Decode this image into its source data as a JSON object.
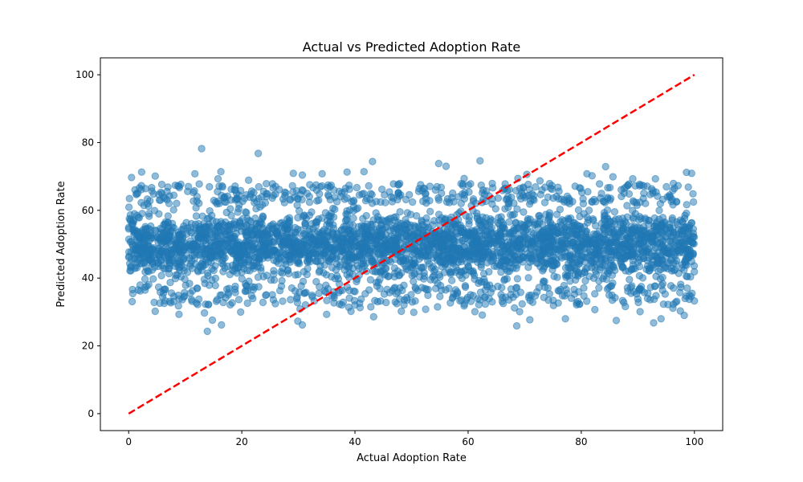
{
  "chart_data": {
    "type": "scatter",
    "title": "Actual vs Predicted Adoption Rate",
    "xlabel": "Actual Adoption Rate",
    "ylabel": "Predicted Adoption Rate",
    "xlim": [
      -5,
      105
    ],
    "ylim": [
      -5,
      105
    ],
    "xticks": [
      0,
      20,
      40,
      60,
      80,
      100
    ],
    "yticks": [
      0,
      20,
      40,
      60,
      80,
      100
    ],
    "grid": false,
    "point_color": "#1f77b4",
    "point_alpha": 0.5,
    "reference_line": {
      "x": [
        0,
        100
      ],
      "y": [
        0,
        100
      ],
      "color": "#ff0000",
      "style": "dashed"
    },
    "series": [
      {
        "description": "dense cloud: x uniformly spread over 0–100, y centered ~50",
        "x_range": [
          0,
          100
        ],
        "y_center": 50,
        "y_core_range": [
          37,
          63
        ],
        "outliers": [
          [
            12.9,
            78.2
          ],
          [
            22.9,
            76.8
          ],
          [
            62.1,
            74.6
          ],
          [
            43.1,
            74.4
          ],
          [
            54.8,
            73.8
          ],
          [
            56.1,
            73.0
          ],
          [
            84.3,
            72.9
          ],
          [
            16.3,
            71.4
          ],
          [
            2.3,
            71.3
          ],
          [
            38.6,
            71.3
          ],
          [
            41.6,
            71.4
          ],
          [
            98.6,
            71.2
          ],
          [
            99.5,
            70.9
          ],
          [
            11.7,
            70.8
          ],
          [
            29.1,
            70.9
          ],
          [
            30.7,
            70.4
          ],
          [
            34.2,
            70.8
          ],
          [
            70.4,
            70.6
          ],
          [
            81.9,
            70.2
          ],
          [
            4.7,
            70.1
          ],
          [
            0.5,
            69.7
          ],
          [
            15.8,
            69.3
          ],
          [
            21.2,
            68.9
          ],
          [
            68.8,
            69.4
          ],
          [
            89.1,
            69.3
          ],
          [
            93.1,
            69.3
          ],
          [
            59.3,
            69.4
          ],
          [
            85.6,
            69.9
          ],
          [
            81.0,
            70.8
          ],
          [
            72.7,
            68.7
          ],
          [
            21.0,
            32.6
          ],
          [
            30.3,
            30.9
          ],
          [
            12.2,
            32.2
          ],
          [
            18.3,
            32.7
          ],
          [
            5.5,
            32.6
          ],
          [
            8.8,
            31.8
          ],
          [
            13.4,
            29.7
          ],
          [
            19.8,
            30.0
          ],
          [
            4.7,
            30.2
          ],
          [
            8.9,
            29.3
          ],
          [
            14.8,
            27.6
          ],
          [
            16.4,
            26.2
          ],
          [
            13.9,
            24.3
          ],
          [
            29.9,
            27.3
          ],
          [
            30.7,
            26.2
          ],
          [
            38.9,
            31.4
          ],
          [
            39.3,
            30.2
          ],
          [
            40.9,
            31.3
          ],
          [
            42.8,
            31.5
          ],
          [
            45.5,
            32.8
          ],
          [
            35.0,
            29.3
          ],
          [
            43.3,
            28.6
          ],
          [
            48.2,
            30.2
          ],
          [
            50.4,
            29.9
          ],
          [
            52.5,
            30.8
          ],
          [
            54.6,
            31.5
          ],
          [
            59.3,
            31.8
          ],
          [
            61.2,
            30.1
          ],
          [
            62.5,
            29.1
          ],
          [
            68.2,
            31.2
          ],
          [
            68.6,
            25.9
          ],
          [
            69.1,
            30.1
          ],
          [
            70.9,
            27.7
          ],
          [
            77.2,
            28.0
          ],
          [
            86.2,
            27.5
          ],
          [
            90.4,
            30.1
          ],
          [
            92.8,
            26.8
          ],
          [
            94.1,
            28.0
          ],
          [
            96.2,
            31.1
          ],
          [
            98.2,
            29.0
          ],
          [
            82.4,
            30.7
          ],
          [
            87.8,
            31.6
          ],
          [
            97.5,
            30.3
          ],
          [
            75.1,
            31.9
          ],
          [
            79.7,
            32.3
          ]
        ]
      }
    ]
  }
}
